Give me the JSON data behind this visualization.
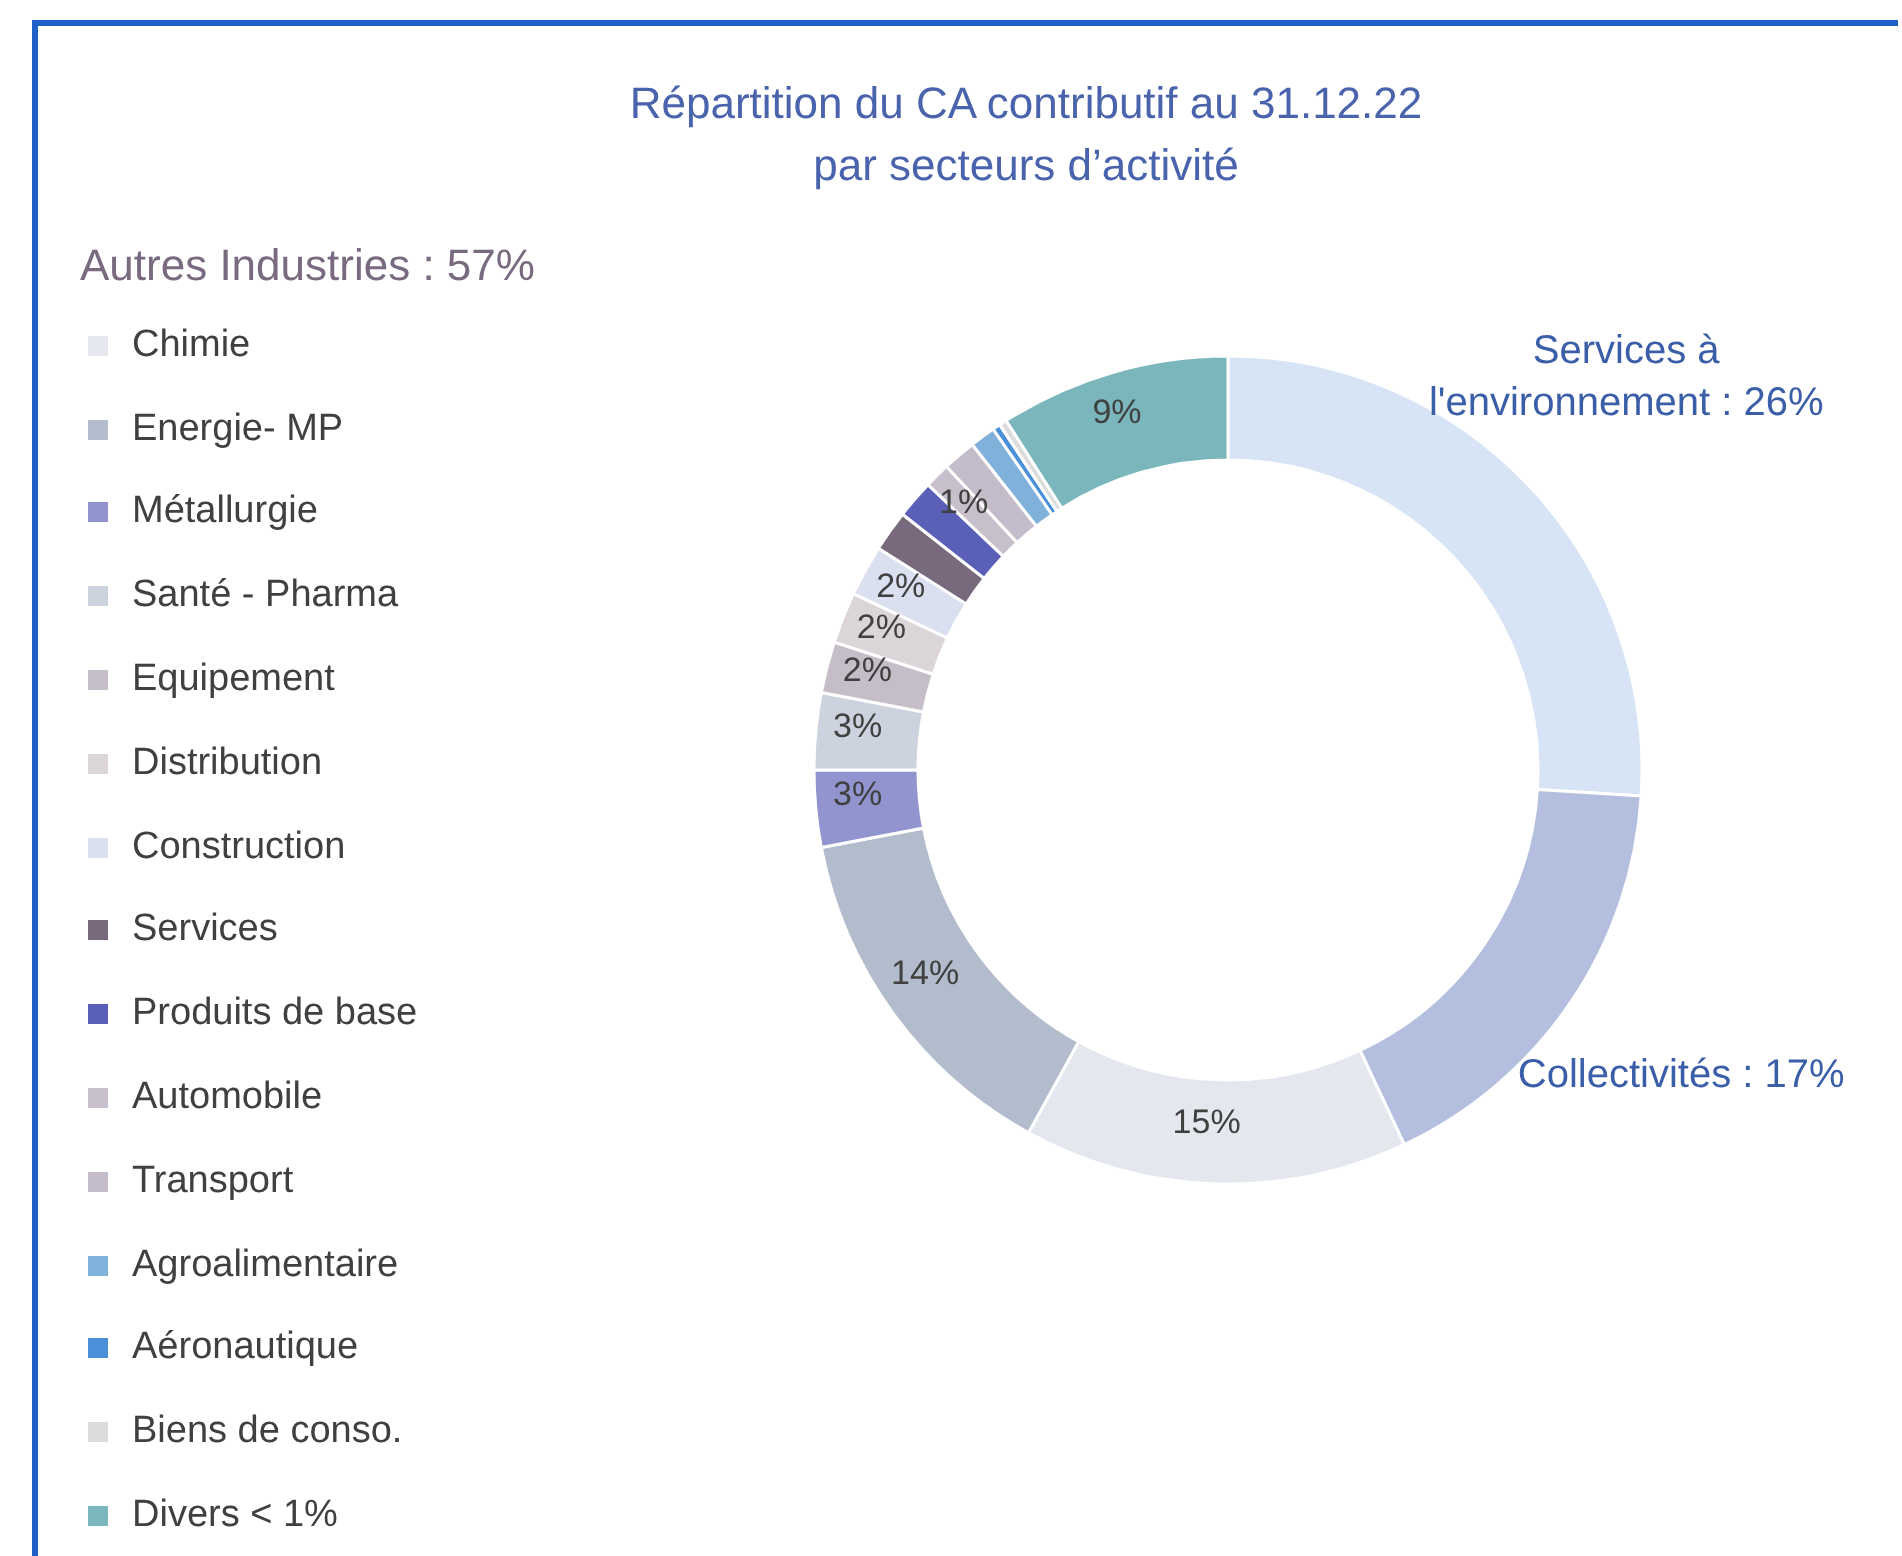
{
  "chart_data": {
    "type": "donut",
    "title": "Répartition du CA contributif au 31.12.22\npar secteurs d’activité",
    "legend_title": "Autres Industries : 57%",
    "legend": "left",
    "categories": [
      "Services à l'environnement",
      "Collectivités",
      "Chimie",
      "Energie- MP",
      "Métallurgie",
      "Santé - Pharma",
      "Equipement",
      "Distribution",
      "Construction",
      "Services",
      "Produits de base",
      "Automobile",
      "Transport",
      "Agroalimentaire",
      "Aéronautique",
      "Biens de conso.",
      "Divers < 1%"
    ],
    "values": [
      26,
      17,
      15,
      14,
      3,
      3,
      2,
      2,
      2,
      1.6,
      1.5,
      1,
      1.3,
      1,
      0.3,
      0.3,
      9
    ],
    "value_labels": [
      "26%",
      "17%",
      "15%",
      "14%",
      "3%",
      "3%",
      "2%",
      "2%",
      "2%",
      null,
      null,
      "1%",
      null,
      null,
      null,
      null,
      "9%"
    ],
    "colors": [
      "#d6e4f5",
      "#b4bfe0",
      "#e4e7ee",
      "#b2bccc",
      "#9294cf",
      "#ccd3de",
      "#c5bdc8",
      "#dbd5da",
      "#dbe0f0",
      "#786a7c",
      "#5a5fb8",
      "#c8bfcc",
      "#c4bccb",
      "#7fb1db",
      "#4a90d9",
      "#dcdcdc",
      "#7ab6bb"
    ]
  }
}
